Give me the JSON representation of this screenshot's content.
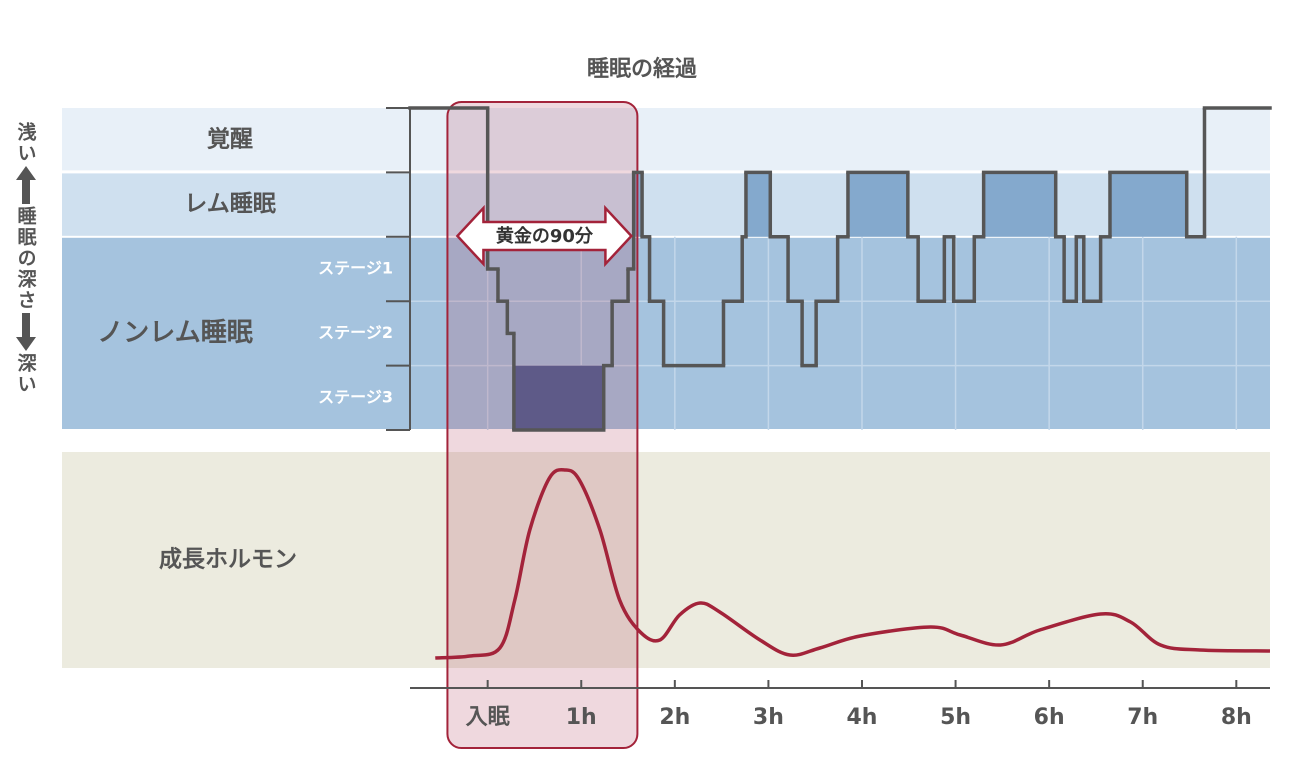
{
  "chart_data": {
    "type": "hypnogram",
    "title": "睡眠の経過",
    "y_label": {
      "top": "浅い",
      "middle": "睡眠の深さ",
      "bottom": "深い"
    },
    "stages": [
      "覚醒",
      "レム睡眠",
      "ノンレム睡眠"
    ],
    "substages": [
      "ステージ1",
      "ステージ2",
      "ステージ3"
    ],
    "xlim": [
      -0.83,
      8.36
    ],
    "xticks": [
      {
        "value": 0,
        "label": "入眠"
      },
      {
        "value": 1,
        "label": "1h"
      },
      {
        "value": 2,
        "label": "2h"
      },
      {
        "value": 3,
        "label": "3h"
      },
      {
        "value": 4,
        "label": "4h"
      },
      {
        "value": 5,
        "label": "5h"
      },
      {
        "value": 6,
        "label": "6h"
      },
      {
        "value": 7,
        "label": "7h"
      },
      {
        "value": 8,
        "label": "8h"
      }
    ],
    "ylim": [
      0,
      5
    ],
    "yticks": [
      0,
      1,
      2,
      3,
      4,
      5
    ],
    "hypnogram": {
      "x": [
        -0.83,
        0,
        0.11,
        0.21,
        0.28,
        1.24,
        1.33,
        1.5,
        1.56,
        1.65,
        1.73,
        1.88,
        2.52,
        2.72,
        2.76,
        3.02,
        3.21,
        3.36,
        3.51,
        3.74,
        3.85,
        4.49,
        4.6,
        4.88,
        4.98,
        5.2,
        5.3,
        6.07,
        6.16,
        6.29,
        6.37,
        6.55,
        6.65,
        7.47,
        7.66
      ],
      "values": [
        0,
        2.5,
        3,
        3.5,
        5,
        4,
        3,
        2.5,
        1,
        2,
        3,
        4,
        3,
        2,
        1,
        2,
        3,
        4,
        3,
        2,
        1,
        2,
        3,
        2,
        3,
        2,
        1,
        2,
        3,
        2,
        3,
        2,
        1,
        2,
        0
      ],
      "color": "#565656",
      "rem_color": "#84a9cd",
      "deep_color": "#4a6294"
    },
    "hormone": {
      "name": "成長ホルモン",
      "x": [
        -0.56,
        -0.19,
        0.13,
        0.29,
        0.45,
        0.66,
        0.83,
        0.98,
        1.2,
        1.41,
        1.63,
        1.84,
        2.05,
        2.27,
        2.48,
        2.91,
        3.23,
        3.55,
        3.98,
        4.73,
        5.05,
        5.48,
        5.9,
        6.55,
        6.87,
        7.19,
        7.61,
        8.36
      ],
      "values": [
        10,
        12,
        20,
        68,
        138,
        190,
        198,
        188,
        138,
        68,
        36,
        28,
        53,
        65,
        56,
        28,
        13,
        20,
        32,
        41,
        33,
        23,
        38,
        54,
        46,
        23,
        18,
        17
      ],
      "ylim": [
        0,
        216
      ],
      "color": "#a3233a"
    },
    "highlight": {
      "label": "黄金の90分",
      "x": [
        -0.43,
        1.6
      ]
    }
  }
}
